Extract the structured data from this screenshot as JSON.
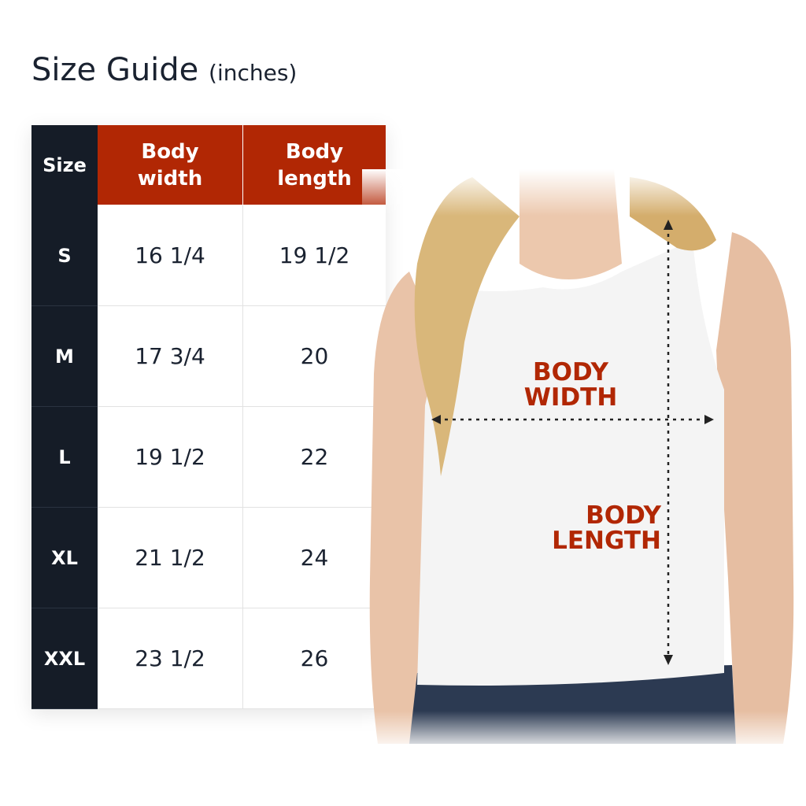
{
  "title": {
    "main": "Size Guide",
    "unit": "(inches)"
  },
  "table": {
    "headers": [
      "Size",
      "Body width",
      "Body length"
    ],
    "rows": [
      {
        "size": "S",
        "width": "16 1/4",
        "length": "19 1/2"
      },
      {
        "size": "M",
        "width": "17 3/4",
        "length": "20"
      },
      {
        "size": "L",
        "width": "19 1/2",
        "length": "22"
      },
      {
        "size": "XL",
        "width": "21 1/2",
        "length": "24"
      },
      {
        "size": "XXL",
        "width": "23 1/2",
        "length": "26"
      }
    ]
  },
  "figure": {
    "width_label": "BODY\nWIDTH",
    "length_label": "BODY\nLENGTH"
  },
  "colors": {
    "accent": "#b12704",
    "dark": "#151c27",
    "text": "#1a2230"
  }
}
